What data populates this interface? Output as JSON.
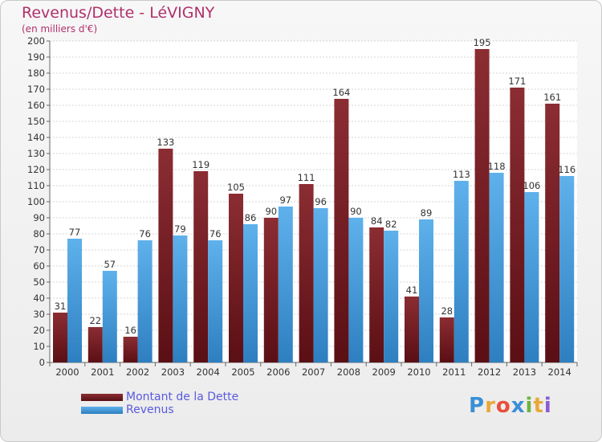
{
  "title": "Revenus/Dette - LéVIGNY",
  "subtitle": "(en milliers d'€)",
  "colors": {
    "debt_light": "#8b2d33",
    "debt_dark": "#5a0f14",
    "revenue_light": "#5fb1ec",
    "revenue_dark": "#2d7fc0",
    "title": "#b0306a",
    "legend_text": "#5a5adf"
  },
  "logo_text": [
    "P",
    "r",
    "o",
    "x",
    "i",
    "t",
    "i"
  ],
  "chart_data": {
    "type": "bar",
    "title": "Revenus/Dette - LéVIGNY",
    "subtitle": "(en milliers d'€)",
    "categories": [
      "2000",
      "2001",
      "2002",
      "2003",
      "2004",
      "2005",
      "2006",
      "2007",
      "2008",
      "2009",
      "2010",
      "2011",
      "2012",
      "2013",
      "2014"
    ],
    "series": [
      {
        "name": "Montant de la Dette",
        "values": [
          31,
          22,
          16,
          133,
          119,
          105,
          90,
          111,
          164,
          84,
          41,
          28,
          195,
          171,
          161
        ]
      },
      {
        "name": "Revenus",
        "values": [
          77,
          57,
          76,
          79,
          76,
          86,
          97,
          96,
          90,
          82,
          89,
          113,
          118,
          106,
          116
        ]
      }
    ],
    "ylim": [
      0,
      200
    ],
    "yticks": [
      0,
      10,
      20,
      30,
      40,
      50,
      60,
      70,
      80,
      90,
      100,
      110,
      120,
      130,
      140,
      150,
      160,
      170,
      180,
      190,
      200
    ],
    "grid": true,
    "legend_position": "bottom-left"
  }
}
